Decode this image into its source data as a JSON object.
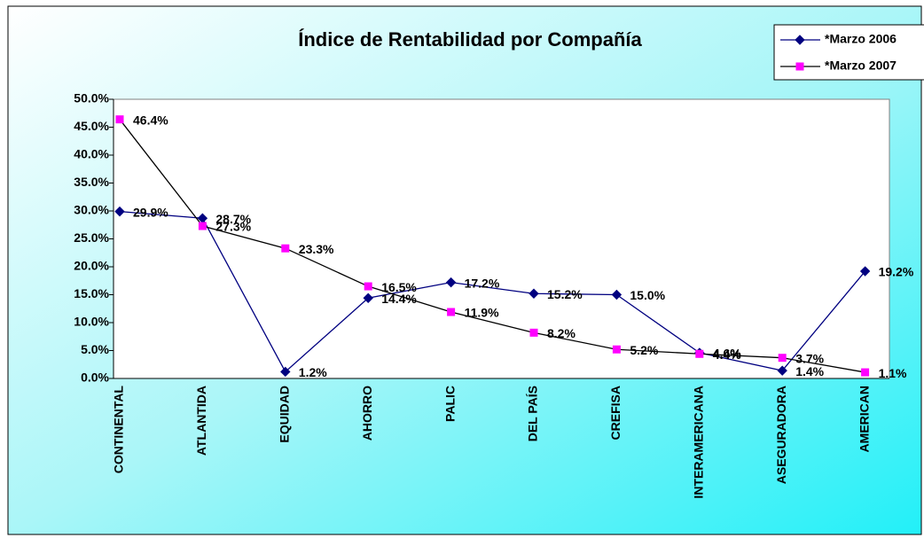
{
  "chart_data": {
    "type": "line",
    "title": "Índice de Rentabilidad por Compañía",
    "categories": [
      "CONTINENTAL",
      "ATLANTIDA",
      "EQUIDAD",
      "AHORRO",
      "PALIC",
      "DEL PAÍS",
      "CREFISA",
      "INTERAMERICANA",
      "ASEGURADORA",
      "AMERICAN"
    ],
    "series": [
      {
        "name": "*Marzo 2006",
        "color": "#000080",
        "line_color": "#000080",
        "marker": "diamond",
        "values": [
          29.9,
          28.7,
          1.2,
          14.4,
          17.2,
          15.2,
          15.0,
          4.6,
          1.4,
          19.2
        ],
        "value_labels": [
          "29.9%",
          "28.7%",
          "1.2%",
          "14.4%",
          "17.2%",
          "15.2%",
          "15.0%",
          "4.6%",
          "1.4%",
          "19.2%"
        ]
      },
      {
        "name": "*Marzo 2007",
        "color": "#ff00ff",
        "line_color": "#000000",
        "marker": "square",
        "values": [
          46.4,
          27.3,
          23.3,
          16.5,
          11.9,
          8.2,
          5.2,
          4.4,
          3.7,
          1.1
        ],
        "value_labels": [
          "46.4%",
          "27.3%",
          "23.3%",
          "16.5%",
          "11.9%",
          "8.2%",
          "5.2%",
          "4.4%",
          "3.7%",
          "1.1%"
        ]
      }
    ],
    "ylim": [
      0,
      50
    ],
    "yticks": [
      {
        "value": 0,
        "label": "0.0%"
      },
      {
        "value": 5,
        "label": "5.0%"
      },
      {
        "value": 10,
        "label": "10.0%"
      },
      {
        "value": 15,
        "label": "15.0%"
      },
      {
        "value": 20,
        "label": "20.0%"
      },
      {
        "value": 25,
        "label": "25.0%"
      },
      {
        "value": 30,
        "label": "30.0%"
      },
      {
        "value": 35,
        "label": "35.0%"
      },
      {
        "value": 40,
        "label": "40.0%"
      },
      {
        "value": 45,
        "label": "45.0%"
      },
      {
        "value": 50,
        "label": "50.0%"
      }
    ],
    "legend": "top-right"
  }
}
